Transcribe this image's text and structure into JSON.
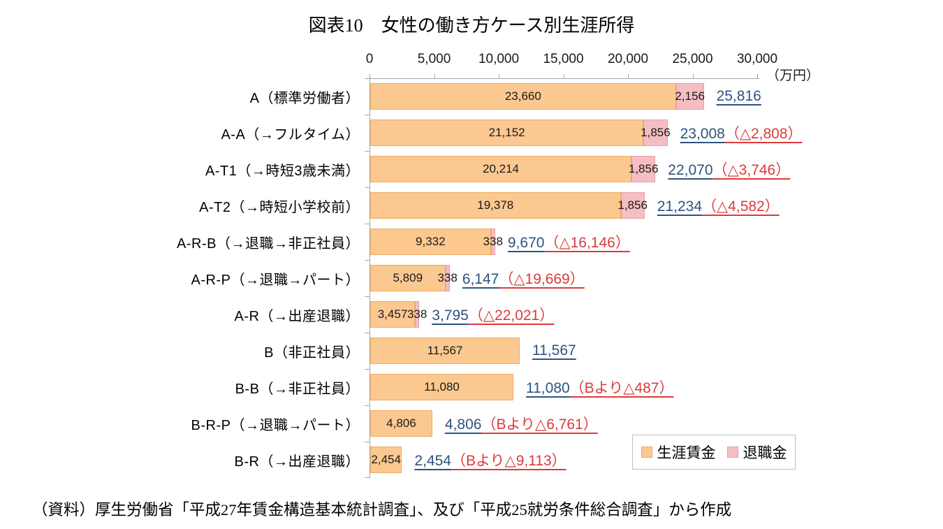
{
  "title": "図表10　女性の働き方ケース別生涯所得",
  "source_note": "（資料）厚生労働省「平成27年賃金構造基本統計調査」、及び「平成25就労条件総合調査」から作成",
  "colors": {
    "wage_fill": "#FBC890",
    "wage_border": "#EEAC64",
    "retire_fill": "#F4BEC2",
    "retire_border": "#E6A0A6",
    "total_text": "#2E537F",
    "delta_text": "#DD3A3A",
    "axis_line": "#A6A6A6"
  },
  "chart_data": {
    "type": "bar",
    "orientation": "horizontal",
    "title": "図表10　女性の働き方ケース別生涯所得",
    "unit_label": "（万円）",
    "x_axis": {
      "ticks": [
        "0",
        "5,000",
        "10,000",
        "15,000",
        "20,000",
        "25,000",
        "30,000"
      ],
      "values": [
        0,
        5000,
        10000,
        15000,
        20000,
        25000,
        30000
      ],
      "max": 30000
    },
    "legend": [
      {
        "name": "生涯賃金",
        "color": "#FBC890",
        "border": "#EEAC64"
      },
      {
        "name": "退職金",
        "color": "#F4BEC2",
        "border": "#E6A0A6"
      }
    ],
    "legend_position": "bottom-right",
    "grid": false,
    "rows": [
      {
        "label": "A（標準労働者）",
        "wage": 23660,
        "wage_label": "23,660",
        "retire": 2156,
        "retire_label": "2,156",
        "total": 25816,
        "total_label": "25,816",
        "delta_label": null
      },
      {
        "label": "A-A（→フルタイム）",
        "wage": 21152,
        "wage_label": "21,152",
        "retire": 1856,
        "retire_label": "1,856",
        "total": 23008,
        "total_label": "23,008",
        "delta_label": "（△2,808）"
      },
      {
        "label": "A-T1（→時短3歳未満）",
        "wage": 20214,
        "wage_label": "20,214",
        "retire": 1856,
        "retire_label": "1,856",
        "total": 22070,
        "total_label": "22,070",
        "delta_label": "（△3,746）"
      },
      {
        "label": "A-T2（→時短小学校前）",
        "wage": 19378,
        "wage_label": "19,378",
        "retire": 1856,
        "retire_label": "1,856",
        "total": 21234,
        "total_label": "21,234",
        "delta_label": "（△4,582）"
      },
      {
        "label": "A-R-B（→退職→非正社員）",
        "wage": 9332,
        "wage_label": "9,332",
        "retire": 338,
        "retire_label": "338",
        "total": 9670,
        "total_label": "9,670",
        "delta_label": "（△16,146）"
      },
      {
        "label": "A-R-P（→退職→パート）",
        "wage": 5809,
        "wage_label": "5,809",
        "retire": 338,
        "retire_label": "338",
        "total": 6147,
        "total_label": "6,147",
        "delta_label": "（△19,669）"
      },
      {
        "label": "A-R（→出産退職）",
        "wage": 3457,
        "wage_label": "3,457",
        "retire": 338,
        "retire_label": "338",
        "total": 3795,
        "total_label": "3,795",
        "delta_label": "（△22,021）"
      },
      {
        "label": "B（非正社員）",
        "wage": 11567,
        "wage_label": "11,567",
        "retire": null,
        "retire_label": null,
        "total": 11567,
        "total_label": "11,567",
        "delta_label": null
      },
      {
        "label": "B-B（→非正社員）",
        "wage": 11080,
        "wage_label": "11,080",
        "retire": null,
        "retire_label": null,
        "total": 11080,
        "total_label": "11,080",
        "delta_label": "（Bより△487）"
      },
      {
        "label": "B-R-P（→退職→パート）",
        "wage": 4806,
        "wage_label": "4,806",
        "retire": null,
        "retire_label": null,
        "total": 4806,
        "total_label": "4,806",
        "delta_label": "（Bより△6,761）"
      },
      {
        "label": "B-R（→出産退職）",
        "wage": 2454,
        "wage_label": "2,454",
        "retire": null,
        "retire_label": null,
        "total": 2454,
        "total_label": "2,454",
        "delta_label": "（Bより△9,113）"
      }
    ]
  }
}
